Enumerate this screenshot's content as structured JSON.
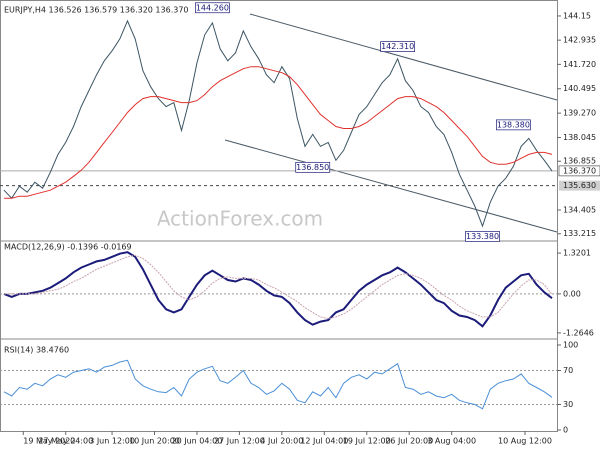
{
  "chart_data": [
    {
      "type": "line",
      "title": "EURJPY,H4 136.526 136.579 136.320 136.370",
      "xlim": [
        0,
        71
      ],
      "ylim": [
        132.9,
        144.7
      ],
      "yticks": [
        144.15,
        142.935,
        {
          "value": 141.72,
          "label": "141.720"
        },
        140.495,
        {
          "value": 139.27,
          "label": "139.270"
        },
        138.045,
        136.855,
        134.405,
        133.215
      ],
      "series": [
        {
          "color": "#3b5563",
          "values": [
            135.4,
            135.0,
            135.6,
            135.3,
            135.8,
            135.5,
            136.3,
            137.2,
            137.8,
            138.6,
            139.6,
            140.4,
            141.2,
            141.9,
            142.4,
            143.0,
            143.9,
            143.0,
            141.4,
            140.6,
            140.0,
            139.6,
            139.8,
            138.4,
            139.9,
            141.8,
            143.2,
            143.8,
            142.5,
            141.9,
            142.3,
            143.4,
            142.6,
            142.0,
            141.2,
            140.8,
            141.6,
            141.0,
            139.0,
            137.6,
            138.2,
            137.6,
            137.8,
            136.9,
            137.4,
            138.3,
            139.2,
            139.6,
            140.2,
            140.8,
            141.2,
            142.0,
            140.9,
            140.4,
            139.6,
            139.3,
            138.6,
            138.2,
            137.3,
            136.2,
            135.4,
            134.6,
            133.6,
            134.8,
            135.6,
            136.0,
            136.6,
            137.6,
            138.0,
            137.4,
            136.9,
            136.37
          ]
        },
        {
          "color": "#e0302c",
          "values": [
            135.0,
            135.0,
            135.1,
            135.1,
            135.2,
            135.3,
            135.4,
            135.6,
            135.8,
            136.1,
            136.4,
            136.8,
            137.3,
            137.8,
            138.3,
            138.8,
            139.3,
            139.7,
            140.0,
            140.1,
            140.1,
            140.0,
            139.9,
            139.8,
            139.8,
            139.9,
            140.2,
            140.6,
            140.9,
            141.1,
            141.3,
            141.5,
            141.6,
            141.6,
            141.5,
            141.4,
            141.3,
            141.1,
            140.7,
            140.2,
            139.7,
            139.2,
            138.9,
            138.6,
            138.5,
            138.5,
            138.6,
            138.8,
            139.1,
            139.4,
            139.7,
            140.0,
            140.1,
            140.1,
            140.0,
            139.8,
            139.6,
            139.3,
            138.9,
            138.5,
            138.1,
            137.6,
            137.1,
            136.8,
            136.7,
            136.7,
            136.8,
            137.0,
            137.2,
            137.3,
            137.3,
            137.2
          ]
        }
      ],
      "annotations": [
        {
          "text": "144.260",
          "value": 144.26,
          "index": 27
        },
        {
          "text": "142.310",
          "value": 142.31,
          "index": 51
        },
        {
          "text": "136.850",
          "value": 136.85,
          "index": 40
        },
        {
          "text": "138.380",
          "value": 138.38,
          "index": 66
        },
        {
          "text": "133.380",
          "value": 133.38,
          "index": 62
        }
      ],
      "current_price": {
        "value": 136.37,
        "label": "136.370"
      },
      "support_level": {
        "value": 135.63,
        "label": "135.630"
      },
      "watermark": "ActionForex.com"
    },
    {
      "type": "line",
      "title": "MACD(12,26,9) -0.1396 -0.0169",
      "xlim": [
        0,
        71
      ],
      "ylim": [
        -1.43,
        1.68
      ],
      "yticks": [
        1.3201,
        {
          "value": 0,
          "label": "0.00"
        },
        -1.2646
      ],
      "series": [
        {
          "color": "#1b1b7a",
          "values": [
            0.0,
            -0.1,
            0.0,
            0.0,
            0.05,
            0.1,
            0.2,
            0.35,
            0.5,
            0.7,
            0.85,
            0.95,
            1.05,
            1.1,
            1.2,
            1.3,
            1.35,
            1.2,
            0.8,
            0.3,
            -0.2,
            -0.5,
            -0.6,
            -0.5,
            -0.1,
            0.3,
            0.6,
            0.75,
            0.6,
            0.45,
            0.4,
            0.5,
            0.45,
            0.3,
            0.1,
            -0.05,
            -0.1,
            -0.3,
            -0.6,
            -0.85,
            -1.0,
            -0.9,
            -0.85,
            -0.6,
            -0.5,
            -0.2,
            0.1,
            0.3,
            0.45,
            0.6,
            0.7,
            0.85,
            0.7,
            0.5,
            0.3,
            0.05,
            -0.2,
            -0.3,
            -0.55,
            -0.7,
            -0.75,
            -0.85,
            -1.05,
            -0.7,
            -0.2,
            0.2,
            0.4,
            0.6,
            0.65,
            0.3,
            0.05,
            -0.1396
          ]
        },
        {
          "color": "#c9a3ad",
          "values": [
            0.0,
            0.0,
            0.0,
            0.0,
            0.0,
            0.05,
            0.1,
            0.15,
            0.25,
            0.4,
            0.5,
            0.65,
            0.8,
            0.9,
            1.0,
            1.1,
            1.2,
            1.25,
            1.15,
            0.95,
            0.7,
            0.4,
            0.1,
            -0.1,
            -0.2,
            -0.1,
            0.1,
            0.35,
            0.5,
            0.55,
            0.5,
            0.5,
            0.5,
            0.45,
            0.3,
            0.2,
            0.05,
            -0.1,
            -0.25,
            -0.45,
            -0.6,
            -0.75,
            -0.8,
            -0.75,
            -0.65,
            -0.5,
            -0.3,
            -0.1,
            0.1,
            0.3,
            0.45,
            0.6,
            0.65,
            0.6,
            0.5,
            0.35,
            0.15,
            -0.05,
            -0.2,
            -0.4,
            -0.55,
            -0.65,
            -0.75,
            -0.75,
            -0.6,
            -0.3,
            0.0,
            0.25,
            0.45,
            0.45,
            0.3,
            -0.0169
          ]
        }
      ]
    },
    {
      "type": "line",
      "title": "RSI(14) 38.4760",
      "xlim": [
        0,
        71
      ],
      "ylim": [
        0,
        100
      ],
      "yticks": [
        100,
        70,
        30,
        0
      ],
      "series": [
        {
          "color": "#4a90d8",
          "values": [
            45,
            40,
            50,
            48,
            55,
            52,
            60,
            65,
            62,
            68,
            70,
            72,
            68,
            74,
            76,
            80,
            82,
            60,
            52,
            48,
            45,
            44,
            50,
            40,
            60,
            68,
            72,
            75,
            58,
            55,
            62,
            70,
            55,
            50,
            42,
            46,
            55,
            48,
            35,
            32,
            45,
            40,
            50,
            38,
            55,
            62,
            65,
            60,
            68,
            66,
            72,
            78,
            50,
            48,
            42,
            45,
            40,
            38,
            42,
            35,
            32,
            30,
            25,
            48,
            55,
            58,
            60,
            66,
            55,
            50,
            45,
            38.476
          ]
        }
      ],
      "xticks": [
        {
          "value": 2.5,
          "label": "19 May 2022"
        },
        {
          "value": 8,
          "label": "27 May 04:00"
        },
        {
          "value": 14,
          "label": "3 Jun 12:00"
        },
        {
          "value": 19.5,
          "label": "10 Jun 20:00"
        },
        {
          "value": 25,
          "label": "20 Jun 04:00"
        },
        {
          "value": 30.5,
          "label": "27 Jun 12:00"
        },
        {
          "value": 36,
          "label": "4 Jul 20:00"
        },
        {
          "value": 41.5,
          "label": "12 Jul 04:00"
        },
        {
          "value": 47,
          "label": "19 Jul 12:00"
        },
        {
          "value": 52.5,
          "label": "26 Jul 20:00"
        },
        {
          "value": 58,
          "label": "3 Aug 04:00"
        },
        {
          "value": 67.5,
          "label": "10 Aug 12:00"
        }
      ]
    }
  ]
}
